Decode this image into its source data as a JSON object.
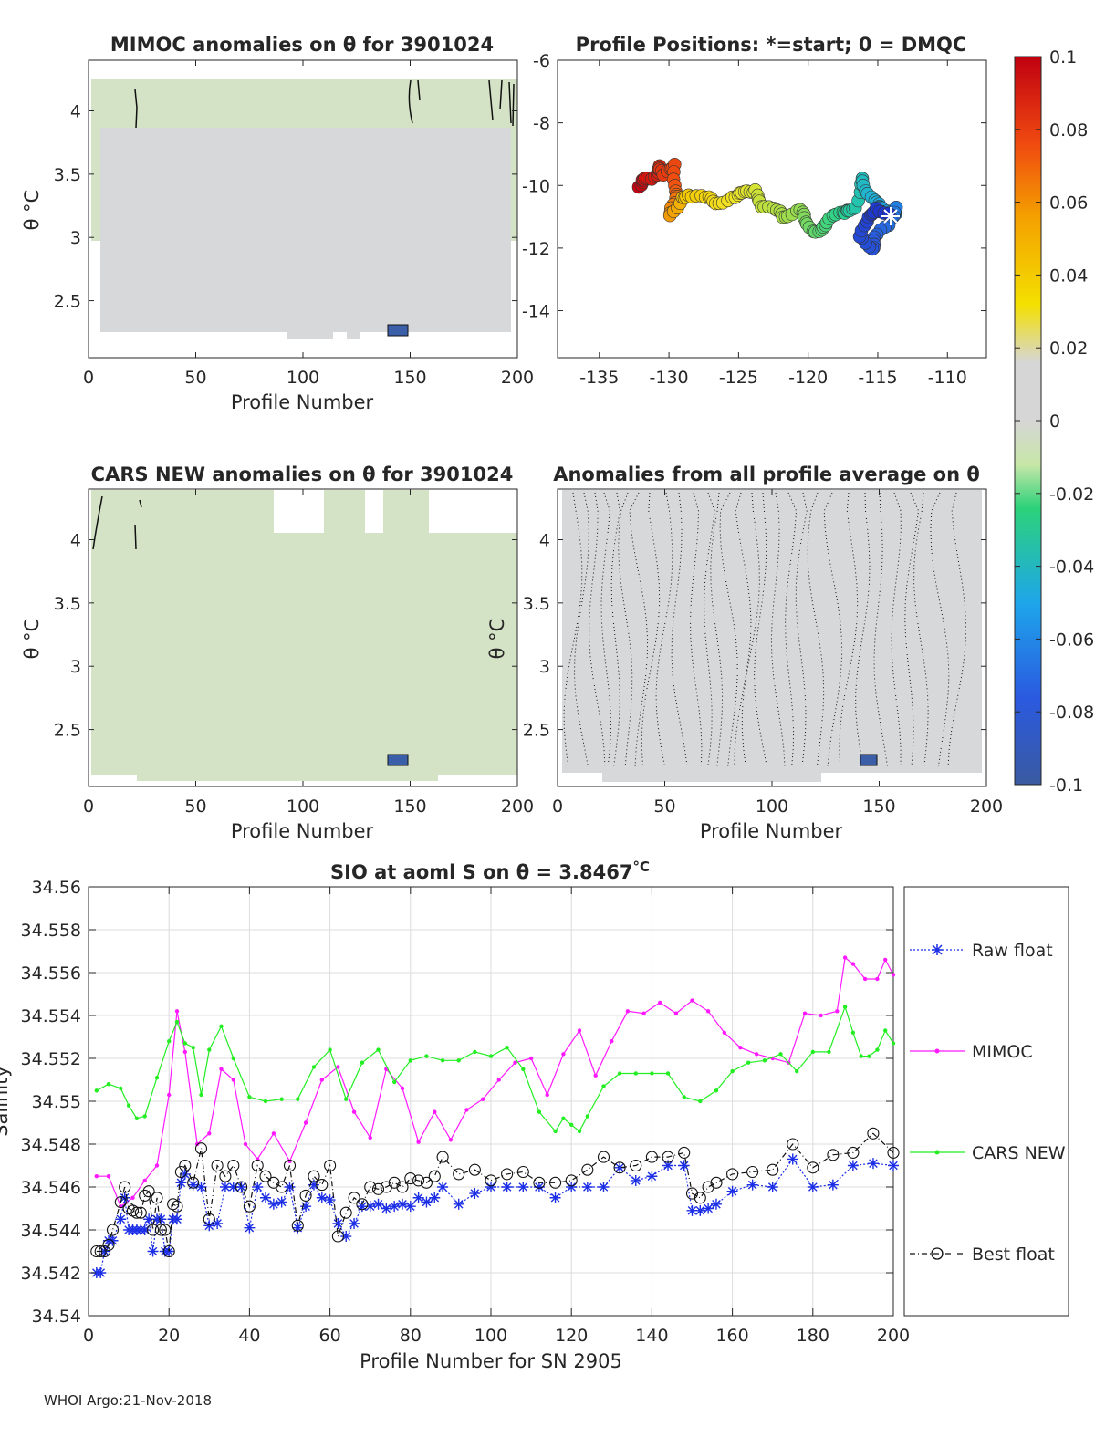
{
  "colors": {
    "anomaly_bg": "#d7d8da",
    "anomaly_green": "#d4e2c6",
    "raw": "#1c2fe6",
    "mimoc": "#ff19ff",
    "cars": "#22ee22",
    "best": "#111111",
    "anomaly_blob": "#3b5ea8"
  },
  "mimoc_panel": {
    "title": "MIMOC anomalies on θ  for 3901024",
    "ylabel": "θ °C",
    "xlabel": "Profile Number",
    "xticks": [
      "0",
      "50",
      "100",
      "150",
      "200"
    ],
    "yticks": [
      "4",
      "3.5",
      "3",
      "2.5"
    ]
  },
  "positions_panel": {
    "title": "Profile Positions: *=start; 0 = DMQC",
    "xticks": [
      "-135",
      "-130",
      "-125",
      "-120",
      "-115",
      "-110"
    ],
    "yticks": [
      "-6",
      "-8",
      "-10",
      "-12",
      "-14"
    ]
  },
  "cars_panel": {
    "title": "CARS NEW anomalies on θ for 3901024",
    "ylabel": "θ °C",
    "xlabel": "Profile Number",
    "xticks": [
      "0",
      "50",
      "100",
      "150",
      "200"
    ],
    "yticks": [
      "4",
      "3.5",
      "3",
      "2.5"
    ]
  },
  "all_avg_panel": {
    "title": "Anomalies from all profile average on θ",
    "ylabel": "θ °C",
    "xlabel": "Profile Number",
    "xticks": [
      "0",
      "50",
      "100",
      "150",
      "200"
    ],
    "yticks": [
      "4",
      "3.5",
      "3",
      "2.5"
    ]
  },
  "colorbar": {
    "ticks": [
      "0.1",
      "0.08",
      "0.06",
      "0.04",
      "0.02",
      "0",
      "-0.02",
      "-0.04",
      "-0.06",
      "-0.08",
      "-0.1"
    ]
  },
  "chart_data": {
    "type": "line",
    "title": "SIO at aoml S on θ = 3.8467",
    "title_unit": "°C",
    "xlabel": "Profile Number for SN 2905",
    "ylabel": "Salinity",
    "xlim": [
      0,
      200
    ],
    "ylim": [
      34.54,
      34.56
    ],
    "xticks": [
      "0",
      "20",
      "40",
      "60",
      "80",
      "100",
      "120",
      "140",
      "160",
      "180",
      "200"
    ],
    "yticks": [
      "34.56",
      "34.558",
      "34.556",
      "34.554",
      "34.552",
      "34.55",
      "34.548",
      "34.546",
      "34.544",
      "34.542",
      "34.54"
    ],
    "legend": [
      "Raw float",
      "MIMOC",
      "CARS NEW",
      "Best float"
    ],
    "series": [
      {
        "name": "MIMOC",
        "x": [
          2,
          5,
          8,
          11,
          14,
          17,
          20,
          22,
          24,
          27,
          30,
          33,
          36,
          39,
          42,
          46,
          50,
          54,
          58,
          62,
          66,
          70,
          74,
          78,
          82,
          86,
          90,
          94,
          98,
          102,
          106,
          110,
          114,
          118,
          122,
          126,
          130,
          134,
          138,
          142,
          146,
          150,
          154,
          158,
          162,
          166,
          170,
          174,
          178,
          182,
          186,
          188,
          190,
          193,
          196,
          198,
          200
        ],
        "values": [
          34.5465,
          34.5465,
          34.5451,
          34.5455,
          34.5463,
          34.547,
          34.5503,
          34.5542,
          34.5523,
          34.548,
          34.5485,
          34.5515,
          34.551,
          34.548,
          34.5473,
          34.5485,
          34.5472,
          34.549,
          34.551,
          34.5516,
          34.5495,
          34.5483,
          34.5515,
          34.5506,
          34.5481,
          34.5495,
          34.5482,
          34.5496,
          34.5501,
          34.551,
          34.5518,
          34.552,
          34.5503,
          34.5522,
          34.5533,
          34.5512,
          34.5528,
          34.5542,
          34.5541,
          34.5546,
          34.5541,
          34.5547,
          34.5542,
          34.5532,
          34.5525,
          34.5522,
          34.552,
          34.5518,
          34.5541,
          34.554,
          34.5542,
          34.5567,
          34.5564,
          34.5557,
          34.5557,
          34.5566,
          34.5559
        ]
      },
      {
        "name": "CARS NEW",
        "x": [
          2,
          5,
          8,
          10,
          12,
          14,
          17,
          20,
          22,
          24,
          26,
          28,
          30,
          33,
          36,
          40,
          44,
          48,
          52,
          56,
          60,
          64,
          68,
          72,
          76,
          80,
          84,
          88,
          92,
          96,
          100,
          104,
          108,
          112,
          116,
          118,
          120,
          122,
          124,
          128,
          132,
          136,
          140,
          144,
          148,
          152,
          156,
          160,
          164,
          168,
          172,
          176,
          180,
          184,
          188,
          190,
          192,
          194,
          196,
          198,
          200
        ],
        "values": [
          34.5505,
          34.5508,
          34.5506,
          34.5498,
          34.5492,
          34.5493,
          34.5511,
          34.5528,
          34.5537,
          34.5527,
          34.5525,
          34.5503,
          34.5524,
          34.5535,
          34.552,
          34.5502,
          34.55,
          34.5501,
          34.5501,
          34.5516,
          34.5524,
          34.5501,
          34.5518,
          34.5524,
          34.5509,
          34.5519,
          34.5521,
          34.5519,
          34.5519,
          34.5523,
          34.5521,
          34.5525,
          34.5515,
          34.5495,
          34.5486,
          34.5492,
          34.5489,
          34.5486,
          34.5493,
          34.5507,
          34.5513,
          34.5513,
          34.5513,
          34.5513,
          34.5502,
          34.55,
          34.5505,
          34.5514,
          34.5518,
          34.5519,
          34.5522,
          34.5514,
          34.5523,
          34.5523,
          34.5544,
          34.5532,
          34.5521,
          34.5521,
          34.5524,
          34.5533,
          34.5527
        ]
      },
      {
        "name": "Raw float",
        "x": [
          2,
          3,
          4,
          5,
          6,
          8,
          9,
          10,
          11,
          12,
          13,
          14,
          15,
          16,
          17,
          18,
          19,
          20,
          21,
          22,
          23,
          24,
          26,
          28,
          30,
          32,
          34,
          36,
          38,
          40,
          42,
          44,
          46,
          48,
          50,
          52,
          54,
          56,
          58,
          60,
          62,
          64,
          66,
          68,
          70,
          72,
          74,
          76,
          78,
          80,
          82,
          84,
          86,
          88,
          92,
          96,
          100,
          104,
          108,
          112,
          116,
          120,
          124,
          128,
          132,
          136,
          140,
          144,
          148,
          150,
          152,
          154,
          156,
          160,
          165,
          170,
          175,
          180,
          185,
          190,
          195,
          200
        ],
        "values": [
          34.542,
          34.542,
          34.543,
          34.5435,
          34.5435,
          34.5445,
          34.5455,
          34.544,
          34.544,
          34.544,
          34.544,
          34.544,
          34.5445,
          34.543,
          34.5445,
          34.5445,
          34.543,
          34.543,
          34.5445,
          34.5445,
          34.5462,
          34.5466,
          34.5461,
          34.546,
          34.5442,
          34.5443,
          34.546,
          34.546,
          34.546,
          34.5441,
          34.546,
          34.5455,
          34.5452,
          34.5453,
          34.546,
          34.5441,
          34.5451,
          34.5461,
          34.5455,
          34.5454,
          34.5443,
          34.5437,
          34.5443,
          34.5451,
          34.5451,
          34.5452,
          34.545,
          34.5451,
          34.5452,
          34.5451,
          34.5455,
          34.5453,
          34.5455,
          34.546,
          34.5452,
          34.5457,
          34.546,
          34.546,
          34.546,
          34.546,
          34.5455,
          34.546,
          34.546,
          34.546,
          34.5469,
          34.5463,
          34.5465,
          34.547,
          34.547,
          34.5449,
          34.5449,
          34.545,
          34.5452,
          34.5458,
          34.5461,
          34.546,
          34.5473,
          34.546,
          34.5461,
          34.547,
          34.5471,
          34.547
        ]
      },
      {
        "name": "Best float",
        "x": [
          2,
          3,
          4,
          5,
          6,
          8,
          9,
          10,
          11,
          12,
          13,
          14,
          15,
          16,
          17,
          18,
          19,
          20,
          21,
          22,
          23,
          24,
          26,
          28,
          30,
          32,
          34,
          36,
          38,
          40,
          42,
          44,
          46,
          48,
          50,
          52,
          54,
          56,
          58,
          60,
          62,
          64,
          66,
          68,
          70,
          72,
          74,
          76,
          78,
          80,
          82,
          84,
          86,
          88,
          92,
          96,
          100,
          104,
          108,
          112,
          116,
          120,
          124,
          128,
          132,
          136,
          140,
          144,
          148,
          150,
          152,
          154,
          156,
          160,
          165,
          170,
          175,
          180,
          185,
          190,
          195,
          200
        ],
        "values": [
          34.543,
          34.543,
          34.543,
          34.5433,
          34.544,
          34.5453,
          34.546,
          34.545,
          34.5449,
          34.5448,
          34.5448,
          34.5456,
          34.5458,
          34.544,
          34.5455,
          34.544,
          34.544,
          34.543,
          34.5452,
          34.5451,
          34.5467,
          34.547,
          34.5462,
          34.5478,
          34.5445,
          34.547,
          34.5465,
          34.547,
          34.546,
          34.5451,
          34.547,
          34.5465,
          34.5462,
          34.546,
          34.547,
          34.5442,
          34.5456,
          34.5465,
          34.5461,
          34.547,
          34.5437,
          34.5448,
          34.5455,
          34.5452,
          34.546,
          34.5459,
          34.546,
          34.5462,
          34.546,
          34.5464,
          34.5463,
          34.5462,
          34.5465,
          34.5474,
          34.5466,
          34.5468,
          34.5463,
          34.5466,
          34.5467,
          34.5462,
          34.5462,
          34.5463,
          34.5468,
          34.5474,
          34.5469,
          34.547,
          34.5474,
          34.5474,
          34.5476,
          34.5457,
          34.5455,
          34.546,
          34.5462,
          34.5466,
          34.5467,
          34.5468,
          34.548,
          34.5469,
          34.5475,
          34.5476,
          34.5485,
          34.5476
        ]
      }
    ]
  },
  "footer": {
    "credit": "WHOI Argo:21-Nov-2018"
  }
}
